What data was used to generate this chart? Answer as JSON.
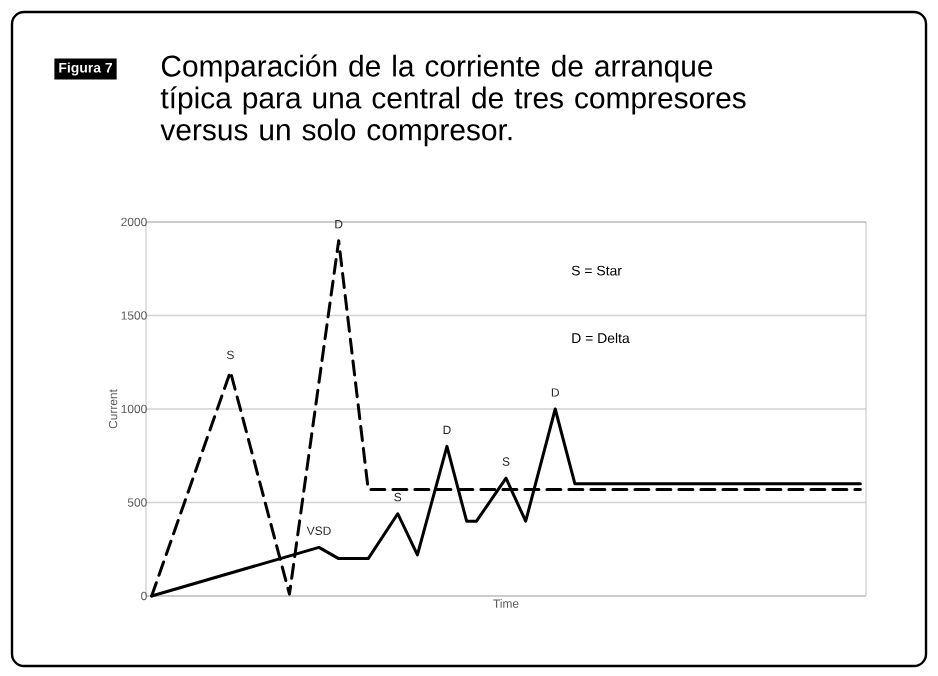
{
  "chart_data": {
    "type": "line",
    "title": "Comparación de la corriente de arranque típica para una central de tres compresores versus un solo compresor.",
    "xlabel": "Time",
    "ylabel": "Current",
    "categories": [
      null,
      null,
      null,
      null,
      null,
      null,
      null,
      null,
      null,
      null,
      null,
      null,
      null,
      null,
      null,
      null,
      null,
      null,
      null,
      null,
      null,
      null,
      null,
      null,
      null,
      null,
      null,
      null,
      null,
      null,
      null,
      null,
      null,
      null,
      null,
      null,
      null,
      null,
      null,
      null,
      null,
      null,
      null,
      null,
      null,
      null,
      null,
      null,
      null,
      null,
      null,
      null,
      null,
      null,
      null,
      null,
      null,
      null,
      null,
      null,
      null,
      null,
      null,
      null,
      null,
      null,
      null,
      null,
      null,
      null,
      null,
      null,
      null
    ],
    "ylim": [
      0,
      2000
    ],
    "yticks": [
      0,
      500,
      1000,
      1500,
      2000
    ],
    "grid": "y",
    "tick_labels": "y",
    "marker": "none",
    "series": [
      {
        "color": "#000000",
        "line_style": "dashed",
        "values": [
          0,
          null,
          null,
          null,
          null,
          null,
          null,
          null,
          1200,
          null,
          null,
          null,
          null,
          null,
          10,
          null,
          null,
          null,
          null,
          1900,
          null,
          null,
          570,
          null,
          null,
          null,
          null,
          null,
          null,
          null,
          null,
          null,
          null,
          null,
          null,
          null,
          null,
          null,
          null,
          null,
          null,
          null,
          null,
          null,
          null,
          null,
          null,
          null,
          null,
          null,
          null,
          null,
          null,
          null,
          null,
          null,
          null,
          null,
          null,
          null,
          null,
          null,
          null,
          null,
          null,
          null,
          null,
          null,
          null,
          null,
          null,
          null,
          570
        ]
      },
      {
        "color": "#000000",
        "line_style": "solid",
        "values": [
          0,
          null,
          null,
          null,
          null,
          null,
          null,
          null,
          null,
          null,
          null,
          null,
          null,
          null,
          null,
          null,
          null,
          260,
          null,
          200,
          null,
          null,
          200,
          null,
          null,
          440,
          null,
          220,
          null,
          null,
          800,
          null,
          400,
          400,
          null,
          null,
          630,
          null,
          400,
          null,
          null,
          1000,
          null,
          600,
          null,
          null,
          null,
          null,
          null,
          null,
          null,
          null,
          null,
          null,
          null,
          null,
          null,
          null,
          null,
          null,
          null,
          null,
          null,
          null,
          null,
          null,
          null,
          null,
          null,
          null,
          null,
          null,
          600
        ]
      }
    ],
    "annotations": [
      "Figura 7",
      "S = Star",
      "D = Delta",
      {
        "text": "S",
        "y": 1200
      },
      {
        "text": "D",
        "y": 1900
      },
      {
        "text": "VSD",
        "y": 260
      },
      {
        "text": "S",
        "y": 440
      },
      {
        "text": "D",
        "y": 800
      },
      {
        "text": "S",
        "y": 630
      },
      {
        "text": "D",
        "y": 1000
      }
    ]
  }
}
